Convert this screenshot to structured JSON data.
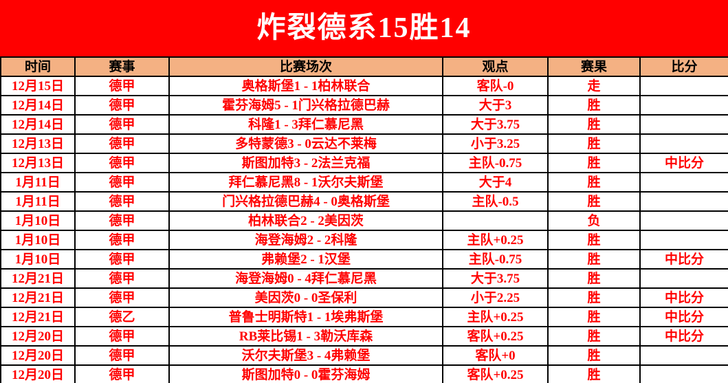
{
  "title": "炸裂德系15胜14",
  "columns": [
    {
      "key": "date",
      "label": "时间"
    },
    {
      "key": "league",
      "label": "赛事"
    },
    {
      "key": "match",
      "label": "比赛场次"
    },
    {
      "key": "view",
      "label": "观点"
    },
    {
      "key": "result",
      "label": "赛果"
    },
    {
      "key": "score",
      "label": "比分"
    }
  ],
  "colors": {
    "banner_red": "#FF0000",
    "header_bg": "#F4B183",
    "win_bg": "#FFFF00",
    "push_bg": "#92D050",
    "push_text": "#00B0F0",
    "text_red": "#FF0000",
    "loss_text": "#000000"
  },
  "rows": [
    {
      "date": "12月15日",
      "league": "德甲",
      "match": "奥格斯堡1 - 1柏林联合",
      "view": "客队-0",
      "result": "走",
      "result_type": "push",
      "score": ""
    },
    {
      "date": "12月14日",
      "league": "德甲",
      "match": "霍芬海姆5 - 1门兴格拉德巴赫",
      "view": "大于3",
      "result": "胜",
      "result_type": "win",
      "score": ""
    },
    {
      "date": "12月14日",
      "league": "德甲",
      "match": "科隆1 - 3拜仁慕尼黑",
      "view": "大于3.75",
      "result": "胜",
      "result_type": "win",
      "score": ""
    },
    {
      "date": "12月13日",
      "league": "德甲",
      "match": "多特蒙德3 - 0云达不莱梅",
      "view": "小于3.25",
      "result": "胜",
      "result_type": "win",
      "score": ""
    },
    {
      "date": "12月13日",
      "league": "德甲",
      "match": "斯图加特3 - 2法兰克福",
      "view": "主队-0.75",
      "result": "胜",
      "result_type": "win",
      "score": "中比分"
    },
    {
      "date": "1月11日",
      "league": "德甲",
      "match": "拜仁慕尼黑8 - 1沃尔夫斯堡",
      "view": "大于4",
      "result": "胜",
      "result_type": "win",
      "score": ""
    },
    {
      "date": "1月11日",
      "league": "德甲",
      "match": "门兴格拉德巴赫4 - 0奥格斯堡",
      "view": "主队-0.5",
      "result": "胜",
      "result_type": "win",
      "score": ""
    },
    {
      "date": "1月10日",
      "league": "德甲",
      "match": "柏林联合2 - 2美因茨",
      "view": "",
      "result": "负",
      "result_type": "loss",
      "score": ""
    },
    {
      "date": "1月10日",
      "league": "德甲",
      "match": "海登海姆2 - 2科隆",
      "view": "主队+0.25",
      "result": "胜",
      "result_type": "win",
      "score": ""
    },
    {
      "date": "1月10日",
      "league": "德甲",
      "match": "弗赖堡2 - 1汉堡",
      "view": "主队-0.75",
      "result": "胜",
      "result_type": "win",
      "score": "中比分"
    },
    {
      "date": "12月21日",
      "league": "德甲",
      "match": "海登海姆0 - 4拜仁慕尼黑",
      "view": "大于3.75",
      "result": "胜",
      "result_type": "win",
      "score": ""
    },
    {
      "date": "12月21日",
      "league": "德甲",
      "match": "美因茨0 - 0圣保利",
      "view": "小于2.25",
      "result": "胜",
      "result_type": "win",
      "score": "中比分"
    },
    {
      "date": "12月21日",
      "league": "德乙",
      "match": "普鲁士明斯特1 - 1埃弗斯堡",
      "view": "主队+0.25",
      "result": "胜",
      "result_type": "win",
      "score": "中比分"
    },
    {
      "date": "12月20日",
      "league": "德甲",
      "match": "RB莱比锡1 - 3勒沃库森",
      "view": "客队+0.25",
      "result": "胜",
      "result_type": "win",
      "score": "中比分"
    },
    {
      "date": "12月20日",
      "league": "德甲",
      "match": "沃尔夫斯堡3 - 4弗赖堡",
      "view": "客队+0",
      "result": "胜",
      "result_type": "win",
      "score": ""
    },
    {
      "date": "12月20日",
      "league": "德甲",
      "match": "斯图加特0 - 0霍芬海姆",
      "view": "客队+0.25",
      "result": "胜",
      "result_type": "win",
      "score": ""
    }
  ]
}
